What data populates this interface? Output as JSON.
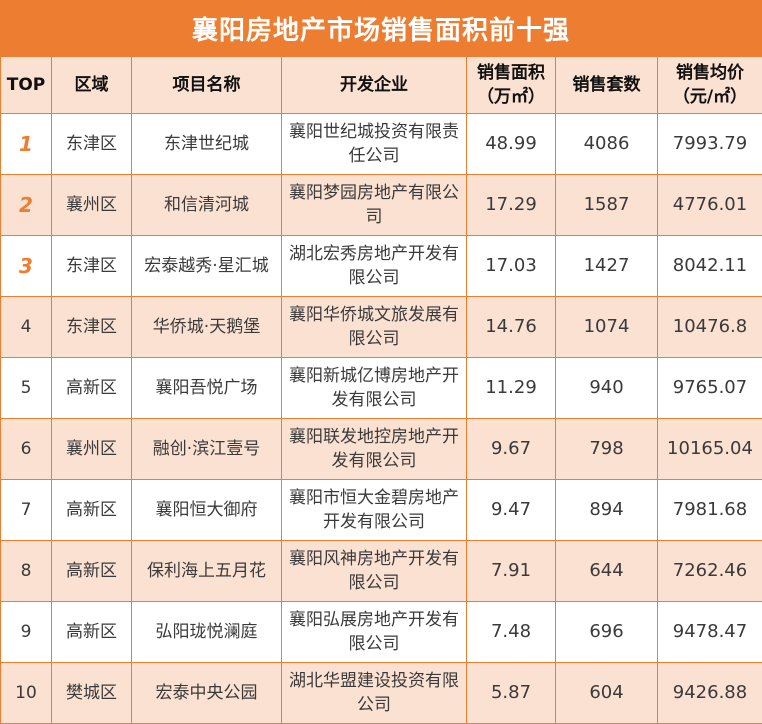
{
  "title": "襄阳房地产市场销售面积前十强",
  "accent_color": "#ED7D31",
  "column_lines": [
    [
      "TOP"
    ],
    [
      "区域"
    ],
    [
      "项目名称"
    ],
    [
      "开发企业"
    ],
    [
      "销售面积",
      "（万㎡）"
    ],
    [
      "销售套数"
    ],
    [
      "销售均价",
      "（元/㎡）"
    ]
  ],
  "rows": [
    {
      "rank": "1",
      "district": "东津区",
      "project": "东津世纪城",
      "developer": "襄阳世纪城投资有限责任公司",
      "area": "48.99",
      "units": "4086",
      "price": "7993.79"
    },
    {
      "rank": "2",
      "district": "襄州区",
      "project": "和信清河城",
      "developer": "襄阳梦园房地产有限公司",
      "area": "17.29",
      "units": "1587",
      "price": "4776.01"
    },
    {
      "rank": "3",
      "district": "东津区",
      "project": "宏泰越秀·星汇城",
      "developer": "湖北宏秀房地产开发有限公司",
      "area": "17.03",
      "units": "1427",
      "price": "8042.11"
    },
    {
      "rank": "4",
      "district": "东津区",
      "project": "华侨城·天鹅堡",
      "developer": "襄阳华侨城文旅发展有限公司",
      "area": "14.76",
      "units": "1074",
      "price": "10476.8"
    },
    {
      "rank": "5",
      "district": "高新区",
      "project": "襄阳吾悦广场",
      "developer": "襄阳新城亿博房地产开发有限公司",
      "area": "11.29",
      "units": "940",
      "price": "9765.07"
    },
    {
      "rank": "6",
      "district": "襄州区",
      "project": "融创·滨江壹号",
      "developer": "襄阳联发地控房地产开发有限公司",
      "area": "9.67",
      "units": "798",
      "price": "10165.04"
    },
    {
      "rank": "7",
      "district": "高新区",
      "project": "襄阳恒大御府",
      "developer": "襄阳市恒大金碧房地产开发有限公司",
      "area": "9.47",
      "units": "894",
      "price": "7981.68"
    },
    {
      "rank": "8",
      "district": "高新区",
      "project": "保利海上五月花",
      "developer": "襄阳风神房地产开发有限公司",
      "area": "7.91",
      "units": "644",
      "price": "7262.46"
    },
    {
      "rank": "9",
      "district": "高新区",
      "project": "弘阳珑悦澜庭",
      "developer": "襄阳弘展房地产开发有限公司",
      "area": "7.48",
      "units": "696",
      "price": "9478.47"
    },
    {
      "rank": "10",
      "district": "樊城区",
      "project": "宏泰中央公园",
      "developer": "湖北华盟建设投资有限公司",
      "area": "5.87",
      "units": "604",
      "price": "9426.88"
    }
  ]
}
